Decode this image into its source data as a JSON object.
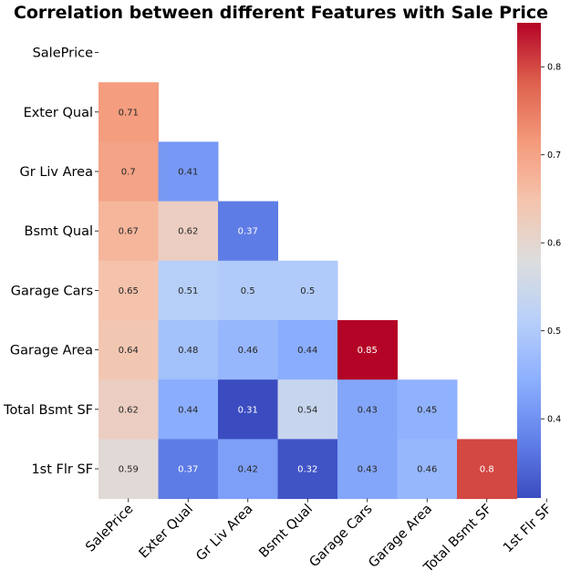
{
  "chart_data": {
    "type": "heatmap",
    "title": "Correlation between different Features with Sale Price",
    "row_labels": [
      "SalePrice",
      "Exter Qual",
      "Gr Liv Area",
      "Bsmt Qual",
      "Garage Cars",
      "Garage Area",
      "Total Bsmt SF",
      "1st Flr SF"
    ],
    "col_labels": [
      "SalePrice",
      "Exter Qual",
      "Gr Liv Area",
      "Bsmt Qual",
      "Garage Cars",
      "Garage Area",
      "Total Bsmt SF",
      "1st Flr SF"
    ],
    "values": [
      [
        null,
        null,
        null,
        null,
        null,
        null,
        null,
        null
      ],
      [
        0.71,
        null,
        null,
        null,
        null,
        null,
        null,
        null
      ],
      [
        0.7,
        0.41,
        null,
        null,
        null,
        null,
        null,
        null
      ],
      [
        0.67,
        0.62,
        0.37,
        null,
        null,
        null,
        null,
        null
      ],
      [
        0.65,
        0.51,
        0.5,
        0.5,
        null,
        null,
        null,
        null
      ],
      [
        0.64,
        0.48,
        0.46,
        0.44,
        0.85,
        null,
        null,
        null
      ],
      [
        0.62,
        0.44,
        0.31,
        0.54,
        0.43,
        0.45,
        null,
        null
      ],
      [
        0.59,
        0.37,
        0.42,
        0.32,
        0.43,
        0.46,
        0.8,
        null
      ]
    ],
    "mask": "upper-triangle-including-diagonal",
    "colormap": "coolwarm",
    "color_range": [
      0.31,
      0.85
    ],
    "colorbar": {
      "ticks": [
        0.4,
        0.5,
        0.6,
        0.7,
        0.8
      ],
      "tick_labels": [
        "0.4",
        "0.5",
        "0.6",
        "0.7",
        "0.8"
      ],
      "placement": "right"
    },
    "annotations": true,
    "grid": false
  }
}
